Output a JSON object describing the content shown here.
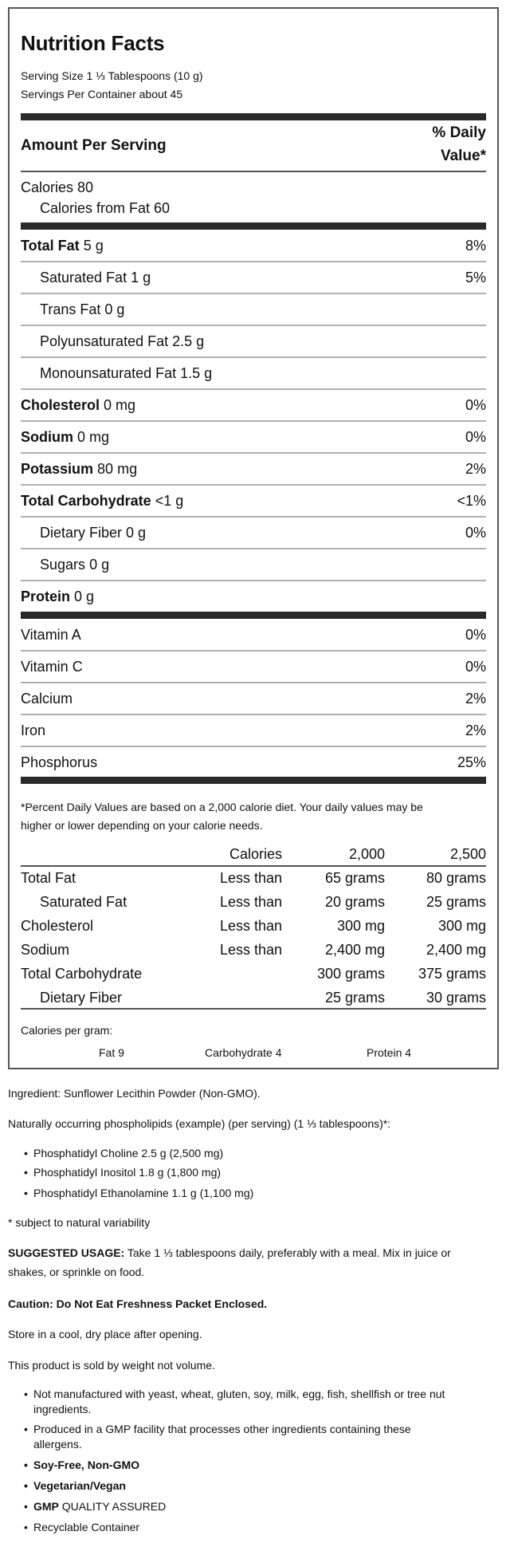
{
  "label": {
    "title": "Nutrition Facts",
    "serving_size": "Serving Size 1 ⅓ Tablespoons (10 g)",
    "servings_per_container": "Servings Per Container about 45",
    "amount_per_serving": "Amount Per Serving",
    "daily_value_header_line1": "% Daily",
    "daily_value_header_line2": "Value*",
    "calories": "Calories 80",
    "calories_from_fat": "Calories from Fat 60",
    "nutrients": [
      {
        "name": "Total Fat",
        "amount": "5 g",
        "dv": "8%",
        "bold": true,
        "indent": false
      },
      {
        "name": "Saturated Fat",
        "amount": "1 g",
        "dv": "5%",
        "bold": false,
        "indent": true
      },
      {
        "name": "Trans Fat",
        "amount": "0 g",
        "dv": "",
        "bold": false,
        "indent": true
      },
      {
        "name": "Polyunsaturated Fat",
        "amount": "2.5 g",
        "dv": "",
        "bold": false,
        "indent": true
      },
      {
        "name": "Monounsaturated Fat",
        "amount": "1.5 g",
        "dv": "",
        "bold": false,
        "indent": true
      },
      {
        "name": "Cholesterol",
        "amount": "0 mg",
        "dv": "0%",
        "bold": true,
        "indent": false
      },
      {
        "name": "Sodium",
        "amount": "0 mg",
        "dv": "0%",
        "bold": true,
        "indent": false
      },
      {
        "name": "Potassium",
        "amount": "80 mg",
        "dv": "2%",
        "bold": true,
        "indent": false
      },
      {
        "name": "Total Carbohydrate",
        "amount": "<1 g",
        "dv": "<1%",
        "bold": true,
        "indent": false
      },
      {
        "name": "Dietary Fiber",
        "amount": "0 g",
        "dv": "0%",
        "bold": false,
        "indent": true
      },
      {
        "name": "Sugars",
        "amount": "0 g",
        "dv": "",
        "bold": false,
        "indent": true
      },
      {
        "name": "Protein",
        "amount": "0 g",
        "dv": "",
        "bold": true,
        "indent": false
      }
    ],
    "vitamins": [
      {
        "name": "Vitamin A",
        "dv": "0%"
      },
      {
        "name": "Vitamin C",
        "dv": "0%"
      },
      {
        "name": "Calcium",
        "dv": "2%"
      },
      {
        "name": "Iron",
        "dv": "2%"
      },
      {
        "name": "Phosphorus",
        "dv": "25%"
      }
    ],
    "footnote_line1": "*Percent Daily Values are based on a 2,000 calorie diet. Your daily values may be",
    "footnote_line2": "higher or lower depending on your calorie needs.",
    "dv_table": {
      "header": [
        "",
        "Calories",
        "2,000",
        "2,500"
      ],
      "rows": [
        {
          "name": "Total Fat",
          "qual": "Less than",
          "v2000": "65 grams",
          "v2500": "80 grams",
          "indent": false
        },
        {
          "name": "Saturated Fat",
          "qual": "Less than",
          "v2000": "20 grams",
          "v2500": "25 grams",
          "indent": true
        },
        {
          "name": "Cholesterol",
          "qual": "Less than",
          "v2000": "300 mg",
          "v2500": "300 mg",
          "indent": false
        },
        {
          "name": "Sodium",
          "qual": "Less than",
          "v2000": "2,400 mg",
          "v2500": "2,400 mg",
          "indent": false
        },
        {
          "name": "Total Carbohydrate",
          "qual": "",
          "v2000": "300 grams",
          "v2500": "375 grams",
          "indent": false
        },
        {
          "name": "Dietary Fiber",
          "qual": "",
          "v2000": "25 grams",
          "v2500": "30 grams",
          "indent": true
        }
      ]
    },
    "calories_per_gram": {
      "label": "Calories per gram:",
      "fat": "Fat 9",
      "carbohydrate": "Carbohydrate 4",
      "protein": "Protein 4"
    }
  },
  "details": {
    "ingredient": "Ingredient: Sunflower Lecithin Powder (Non-GMO).",
    "phospholipids_intro": "Naturally occurring phospholipids (example) (per serving) (1 ⅓ tablespoons)*:",
    "phospholipids": [
      "Phosphatidyl Choline 2.5 g (2,500 mg)",
      "Phosphatidyl Inositol 1.8 g (1,800 mg)",
      "Phosphatidyl Ethanolamine 1.1 g (1,100 mg)"
    ],
    "variability_note": "* subject to natural variability",
    "suggested_usage_label": "SUGGESTED USAGE:",
    "suggested_usage_text1": " Take 1 ⅓ tablespoons daily, preferably with a meal. Mix in juice or",
    "suggested_usage_text2": "shakes, or sprinkle on food.",
    "caution": "Caution: Do Not Eat Freshness Packet Enclosed.",
    "storage": "Store in a cool, dry place after opening.",
    "weight_note": "This product is sold by weight not volume.",
    "features": {
      "not_manufactured_1": "Not manufactured with yeast, wheat, gluten, soy, milk, egg, fish, shellfish or tree nut",
      "not_manufactured_2": "ingredients.",
      "produced_1": "Produced in a GMP facility that processes other ingredients containing these",
      "produced_2": "allergens.",
      "soy_free": "Soy-Free, Non-GMO",
      "vegetarian": "Vegetarian/Vegan",
      "gmp_bold": "GMP",
      "gmp_rest": " QUALITY ASSURED",
      "recyclable": "Recyclable Container"
    }
  }
}
